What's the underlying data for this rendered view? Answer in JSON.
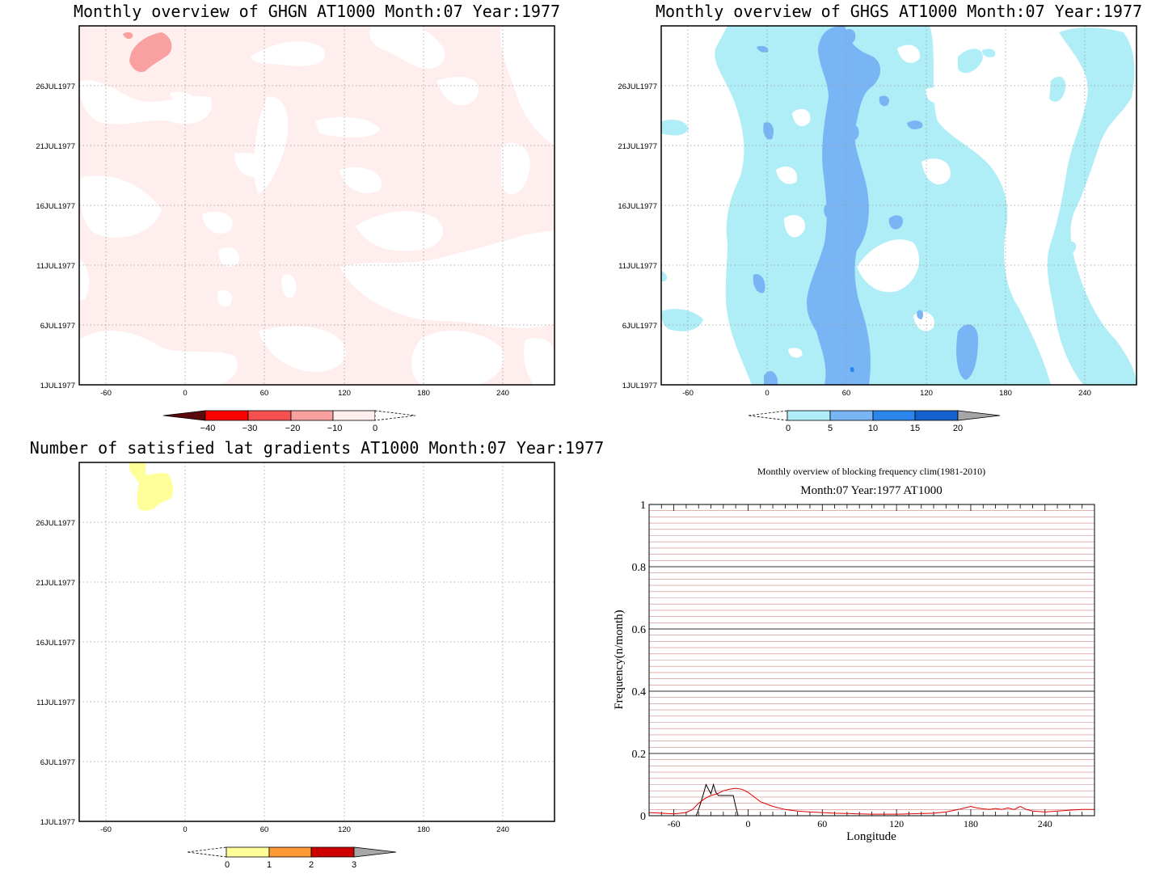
{
  "panels": [
    {
      "title": "Monthly overview of GHGN AT1000 Month:07 Year:1977",
      "colorbar": {
        "ticks": [
          "−40",
          "−30",
          "−20",
          "−10",
          "0"
        ],
        "colors": [
          "#5a0a0a",
          "#ff0000",
          "#f55050",
          "#f9a1a1",
          "#ffeeee"
        ]
      }
    },
    {
      "title": "Monthly overview of GHGS AT1000 Month:07 Year:1977",
      "colorbar": {
        "ticks": [
          "0",
          "5",
          "10",
          "15",
          "20"
        ],
        "colors": [
          "#b0eef7",
          "#79b5f5",
          "#2a86ea",
          "#1460cc",
          "#a6a6a6"
        ]
      }
    },
    {
      "title": "Number of satisfied lat gradients AT1000 Month:07 Year:1977",
      "colorbar": {
        "ticks": [
          "0",
          "1",
          "2",
          "3"
        ],
        "colors": [
          "#ffff99",
          "#ff9933",
          "#cc0000",
          "#a6a6a6"
        ]
      }
    }
  ],
  "hovmoller_axes": {
    "x_ticks": [
      "-60",
      "0",
      "60",
      "120",
      "180",
      "240"
    ],
    "y_ticks": [
      "1JUL1977",
      "6JUL1977",
      "11JUL1977",
      "16JUL1977",
      "21JUL1977",
      "26JUL1977"
    ]
  },
  "chart_data": [
    {
      "type": "heatmap",
      "title": "Monthly overview of GHGN AT1000 Month:07 Year:1977",
      "x_ticks": [
        -60,
        0,
        60,
        120,
        180,
        240
      ],
      "y_ticks": [
        "1JUL1977",
        "6JUL1977",
        "11JUL1977",
        "16JUL1977",
        "21JUL1977",
        "26JUL1977"
      ],
      "xlim": [
        -80,
        280
      ],
      "levels": [
        -40,
        -30,
        -20,
        -10,
        0
      ],
      "fill_colors": [
        "#ffeeee",
        "#f9a1a1"
      ],
      "features": [
        {
          "level": "-10 to 0",
          "description": "light pink over most of the domain"
        },
        {
          "level": "-20 to -10",
          "x_range": [
            -40,
            -10
          ],
          "dates": [
            "28JUL1977",
            "30JUL1977"
          ]
        }
      ]
    },
    {
      "type": "heatmap",
      "title": "Monthly overview of GHGS AT1000 Month:07 Year:1977",
      "x_ticks": [
        -60,
        0,
        60,
        120,
        180,
        240
      ],
      "y_ticks": [
        "1JUL1977",
        "6JUL1977",
        "11JUL1977",
        "16JUL1977",
        "21JUL1977",
        "26JUL1977"
      ],
      "xlim": [
        -80,
        280
      ],
      "levels": [
        0,
        5,
        10,
        15,
        20
      ],
      "fill_colors": [
        "#b0eef7",
        "#79b5f5",
        "#2a86ea"
      ],
      "features": [
        {
          "level": "0 to 5",
          "x_range": [
            -20,
            180
          ],
          "dates": [
            "1JUL1977",
            "31JUL1977"
          ]
        },
        {
          "level": "5 to 10",
          "x_range": [
            30,
            80
          ],
          "dates": [
            "1JUL1977",
            "31JUL1977"
          ]
        }
      ]
    },
    {
      "type": "heatmap",
      "title": "Number of satisfied lat gradients AT1000 Month:07 Year:1977",
      "x_ticks": [
        -60,
        0,
        60,
        120,
        180,
        240
      ],
      "y_ticks": [
        "1JUL1977",
        "6JUL1977",
        "11JUL1977",
        "16JUL1977",
        "21JUL1977",
        "26JUL1977"
      ],
      "xlim": [
        -80,
        280
      ],
      "levels": [
        0,
        1,
        2,
        3
      ],
      "fill_colors": [
        "#ffff99"
      ],
      "features": [
        {
          "level": "0 to 1",
          "x_range": [
            -40,
            -10
          ],
          "dates": [
            "27JUL1977",
            "31JUL1977"
          ]
        }
      ]
    },
    {
      "type": "line",
      "title": "Monthly overview of blocking frequency clim(1981-2010)",
      "subtitle": "Month:07 Year:1977  AT1000",
      "xlabel": "Longitude",
      "ylabel": "Frequency(n/month)",
      "xlim": [
        -80,
        280
      ],
      "ylim": [
        0,
        1
      ],
      "x_ticks": [
        -60,
        0,
        60,
        120,
        180,
        240
      ],
      "y_ticks": [
        0,
        0.2,
        0.4,
        0.6,
        0.8,
        1
      ],
      "grid": true,
      "series": [
        {
          "color": "#000000",
          "x": [
            -80,
            -42,
            -40,
            -38,
            -36,
            -34,
            -32,
            -30,
            -28,
            -26,
            -24,
            -22,
            -20,
            -18,
            -16,
            -14,
            -12,
            -10,
            -8,
            280
          ],
          "values": [
            0,
            0,
            0.02,
            0.045,
            0.07,
            0.1,
            0.085,
            0.07,
            0.1,
            0.075,
            0.065,
            0.065,
            0.065,
            0.065,
            0.065,
            0.065,
            0.065,
            0.03,
            0,
            0
          ]
        },
        {
          "color": "#dd0000",
          "x": [
            -80,
            -70,
            -60,
            -50,
            -45,
            -40,
            -35,
            -30,
            -25,
            -20,
            -15,
            -10,
            -5,
            0,
            5,
            10,
            20,
            30,
            40,
            50,
            60,
            70,
            80,
            90,
            100,
            110,
            120,
            130,
            140,
            150,
            160,
            170,
            175,
            180,
            185,
            190,
            195,
            200,
            205,
            210,
            215,
            220,
            225,
            230,
            240,
            250,
            260,
            270,
            280
          ],
          "values": [
            0.01,
            0.008,
            0.006,
            0.01,
            0.02,
            0.04,
            0.055,
            0.065,
            0.07,
            0.08,
            0.085,
            0.088,
            0.085,
            0.075,
            0.06,
            0.045,
            0.03,
            0.02,
            0.015,
            0.012,
            0.01,
            0.008,
            0.007,
            0.006,
            0.005,
            0.005,
            0.005,
            0.006,
            0.007,
            0.008,
            0.012,
            0.02,
            0.025,
            0.03,
            0.025,
            0.022,
            0.02,
            0.023,
            0.02,
            0.025,
            0.02,
            0.03,
            0.02,
            0.015,
            0.012,
            0.015,
            0.018,
            0.02,
            0.02
          ]
        }
      ]
    }
  ],
  "line_plot": {
    "title": "Monthly overview of blocking frequency clim(1981-2010)",
    "subtitle": "Month:07 Year:1977  AT1000",
    "xlabel": "Longitude",
    "ylabel": "Frequency(n/month)",
    "x_tick_labels": [
      "-60",
      "0",
      "60",
      "120",
      "180",
      "240"
    ],
    "y_tick_labels": [
      "0",
      "0.2",
      "0.4",
      "0.6",
      "0.8",
      "1"
    ]
  }
}
